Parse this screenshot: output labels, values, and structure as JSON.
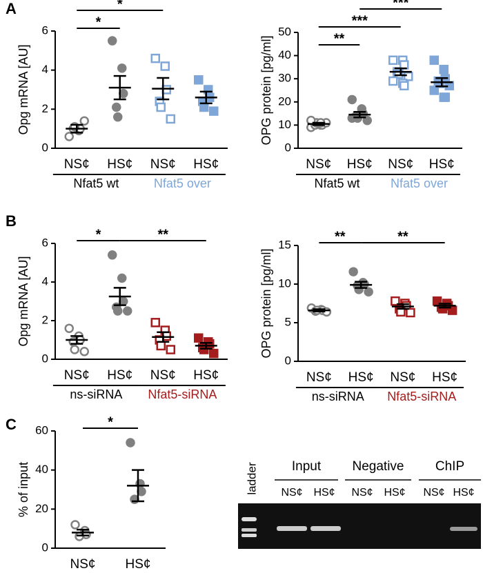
{
  "chart_data": [
    {
      "type": "dot",
      "panel_label": "A",
      "ylabel": "Opg mRNA [AU]",
      "ylim": [
        0,
        6
      ],
      "yticks": [
        0,
        2,
        4,
        6
      ],
      "categories": [
        "NS¢",
        "HS¢",
        "NS¢",
        "HS¢"
      ],
      "colors": [
        "#808080",
        "#808080",
        "#7ea6d8",
        "#7ea6d8"
      ],
      "filled": [
        false,
        true,
        false,
        true
      ],
      "points": [
        [
          0.6,
          0.9,
          1.0,
          1.0,
          1.1,
          1.4
        ],
        [
          5.5,
          4.1,
          2.8,
          2.1,
          1.6
        ],
        [
          4.6,
          4.2,
          3.0,
          2.4,
          2.1,
          1.5
        ],
        [
          3.5,
          3.0,
          2.6,
          2.4,
          2.1,
          1.9
        ]
      ],
      "means": [
        1.0,
        3.1,
        3.05,
        2.6
      ],
      "sem": [
        0.2,
        0.6,
        0.55,
        0.3
      ],
      "groups": [
        {
          "label": "Nfat5 wt",
          "color": "#000000"
        },
        {
          "label": "Nfat5 over",
          "color": "#7ea6d8"
        }
      ],
      "significance": [
        {
          "label": "*",
          "from": 0,
          "to": 1
        },
        {
          "label": "*",
          "from": 0,
          "to": 2
        }
      ]
    },
    {
      "type": "dot",
      "ylabel": "OPG protein [pg/ml]",
      "ylim": [
        0,
        50
      ],
      "yticks": [
        0,
        10,
        20,
        30,
        40,
        50
      ],
      "categories": [
        "NS¢",
        "HS¢",
        "NS¢",
        "HS¢"
      ],
      "colors": [
        "#808080",
        "#808080",
        "#7ea6d8",
        "#7ea6d8"
      ],
      "filled": [
        false,
        true,
        false,
        true
      ],
      "points": [
        [
          9,
          10,
          10,
          10,
          11,
          11,
          12,
          11
        ],
        [
          21,
          17,
          15,
          14,
          13,
          12,
          13
        ],
        [
          38,
          38,
          36,
          33,
          32,
          31,
          29,
          28,
          27
        ],
        [
          38,
          34,
          30,
          29,
          28,
          27,
          25,
          22,
          22
        ]
      ],
      "means": [
        10.5,
        14.5,
        33,
        28.5
      ],
      "sem": [
        0.5,
        1.2,
        1.5,
        1.8
      ],
      "groups": [
        {
          "label": "Nfat5 wt",
          "color": "#000000"
        },
        {
          "label": "Nfat5 over",
          "color": "#7ea6d8"
        }
      ],
      "significance": [
        {
          "label": "**",
          "from": 0,
          "to": 1
        },
        {
          "label": "***",
          "from": 0,
          "to": 2
        },
        {
          "label": "***",
          "from": 1,
          "to": 3
        }
      ]
    },
    {
      "type": "dot",
      "panel_label": "B",
      "ylabel": "Opg mRNA [AU]",
      "ylim": [
        0,
        6
      ],
      "yticks": [
        0,
        2,
        4,
        6
      ],
      "categories": [
        "NS¢",
        "HS¢",
        "NS¢",
        "HS¢"
      ],
      "colors": [
        "#808080",
        "#808080",
        "#a51c1c",
        "#a51c1c"
      ],
      "filled": [
        false,
        true,
        false,
        true
      ],
      "points": [
        [
          1.6,
          1.2,
          1.0,
          0.9,
          0.5,
          0.4
        ],
        [
          5.4,
          4.2,
          3.0,
          2.7,
          2.5,
          2.5
        ],
        [
          1.9,
          1.5,
          1.2,
          1.0,
          0.7,
          0.5
        ],
        [
          1.1,
          0.9,
          0.8,
          0.6,
          0.5,
          0.3
        ]
      ],
      "means": [
        1.0,
        3.25,
        1.15,
        0.7
      ],
      "sem": [
        0.2,
        0.45,
        0.25,
        0.15
      ],
      "groups": [
        {
          "label": "ns-siRNA",
          "color": "#000000"
        },
        {
          "label": "Nfat5-siRNA",
          "color": "#a51c1c"
        }
      ],
      "significance": [
        {
          "label": "*",
          "from": 0,
          "to": 1
        },
        {
          "label": "**",
          "from": 1,
          "to": 3
        }
      ]
    },
    {
      "type": "dot",
      "ylabel": "OPG protein [pg/ml]",
      "ylim": [
        0,
        15
      ],
      "yticks": [
        0,
        5,
        10,
        15
      ],
      "categories": [
        "NS¢",
        "HS¢",
        "NS¢",
        "HS¢"
      ],
      "colors": [
        "#808080",
        "#808080",
        "#a51c1c",
        "#a51c1c"
      ],
      "filled": [
        false,
        true,
        false,
        true
      ],
      "points": [
        [
          6.9,
          6.7,
          6.6,
          6.5,
          6.6,
          6.4
        ],
        [
          11.6,
          10.2,
          10,
          9.8,
          9.3,
          9.0
        ],
        [
          7.8,
          7.5,
          7.2,
          6.8,
          6.4,
          6.3
        ],
        [
          7.8,
          7.5,
          7.2,
          7.0,
          6.8,
          6.6
        ]
      ],
      "means": [
        6.6,
        9.9,
        7.1,
        7.2
      ],
      "sem": [
        0.15,
        0.4,
        0.3,
        0.25
      ],
      "groups": [
        {
          "label": "ns-siRNA",
          "color": "#000000"
        },
        {
          "label": "Nfat5-siRNA",
          "color": "#a51c1c"
        }
      ],
      "significance": [
        {
          "label": "**",
          "from": 0,
          "to": 1
        },
        {
          "label": "**",
          "from": 1,
          "to": 3
        }
      ]
    },
    {
      "type": "dot",
      "panel_label": "C",
      "ylabel": "% of input",
      "ylim": [
        0,
        60
      ],
      "yticks": [
        0,
        20,
        40,
        60
      ],
      "categories": [
        "NS¢",
        "HS¢"
      ],
      "colors": [
        "#808080",
        "#808080"
      ],
      "filled": [
        false,
        true
      ],
      "points": [
        [
          12,
          9,
          7,
          6
        ],
        [
          54,
          33,
          29,
          25
        ]
      ],
      "means": [
        8,
        32
      ],
      "sem": [
        1.5,
        8
      ],
      "significance": [
        {
          "label": "*",
          "from": 0,
          "to": 1
        }
      ]
    }
  ],
  "gel": {
    "ladder": "ladder",
    "groups": [
      {
        "label": "Input",
        "lanes": [
          "NS¢",
          "HS¢"
        ]
      },
      {
        "label": "Negative",
        "lanes": [
          "NS¢",
          "HS¢"
        ]
      },
      {
        "label": "ChIP",
        "lanes": [
          "NS¢",
          "HS¢"
        ]
      }
    ]
  }
}
